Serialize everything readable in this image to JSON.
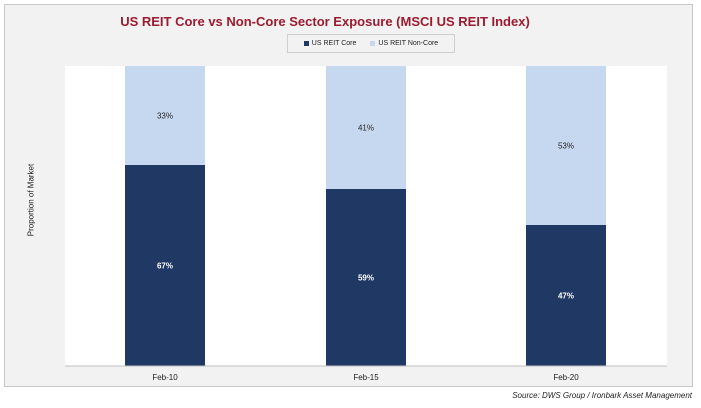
{
  "chart_data": {
    "type": "bar",
    "stacked": true,
    "title": "US REIT Core vs Non-Core Sector Exposure (MSCI US REIT Index)",
    "ylabel": "Proportion of Market",
    "xlabel": "",
    "categories": [
      "Feb-10",
      "Feb-15",
      "Feb-20"
    ],
    "ylim": [
      0,
      100
    ],
    "legend_position": "top",
    "series": [
      {
        "name": "US REIT Core",
        "values": [
          67,
          59,
          47
        ],
        "labels": [
          "67%",
          "59%",
          "47%"
        ],
        "color": "#1f3864"
      },
      {
        "name": "US REIT Non-Core",
        "values": [
          33,
          41,
          53
        ],
        "labels": [
          "33%",
          "41%",
          "53%"
        ],
        "color": "#c6d8f0"
      }
    ]
  },
  "source": "Source: DWS Group / Ironbark Asset Management"
}
